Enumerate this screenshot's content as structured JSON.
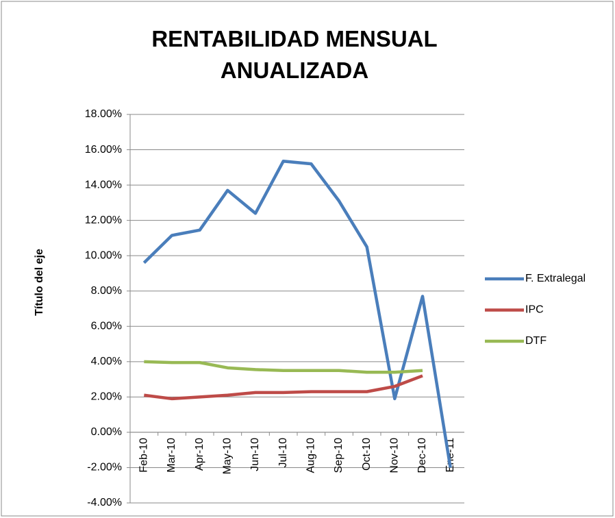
{
  "chart_data": {
    "type": "line",
    "title": "RENTABILIDAD MENSUAL ANUALIZADA",
    "y_label": "Título del eje",
    "categories": [
      "Feb-10",
      "Mar-10",
      "Apr-10",
      "May-10",
      "Jun-10",
      "Jul-10",
      "Aug-10",
      "Sep-10",
      "Oct-10",
      "Nov-10",
      "Dec-10",
      "Ene-11"
    ],
    "series": [
      {
        "name": "F. Extralegal",
        "color": "#4a7ebb",
        "values": [
          9.6,
          11.15,
          11.45,
          13.7,
          12.4,
          15.35,
          15.2,
          13.1,
          10.5,
          1.9,
          7.7,
          -2.0
        ]
      },
      {
        "name": "IPC",
        "color": "#be4b48",
        "values": [
          2.1,
          1.9,
          2.0,
          2.1,
          2.25,
          2.25,
          2.3,
          2.3,
          2.3,
          2.6,
          3.2,
          null
        ]
      },
      {
        "name": "DTF",
        "color": "#98b954",
        "values": [
          4.0,
          3.95,
          3.95,
          3.65,
          3.55,
          3.5,
          3.5,
          3.5,
          3.4,
          3.4,
          3.5,
          null
        ]
      }
    ],
    "ylim": [
      -4,
      18
    ],
    "yticks": [
      {
        "value": -4,
        "label": "-4.00%"
      },
      {
        "value": -2,
        "label": "-2.00%"
      },
      {
        "value": 0,
        "label": "0.00%"
      },
      {
        "value": 2,
        "label": "2.00%"
      },
      {
        "value": 4,
        "label": "4.00%"
      },
      {
        "value": 6,
        "label": "6.00%"
      },
      {
        "value": 8,
        "label": "8.00%"
      },
      {
        "value": 10,
        "label": "10.00%"
      },
      {
        "value": 12,
        "label": "12.00%"
      },
      {
        "value": 14,
        "label": "14.00%"
      },
      {
        "value": 16,
        "label": "16.00%"
      },
      {
        "value": 18,
        "label": "18.00%"
      }
    ],
    "grid": true,
    "legend": "right"
  }
}
